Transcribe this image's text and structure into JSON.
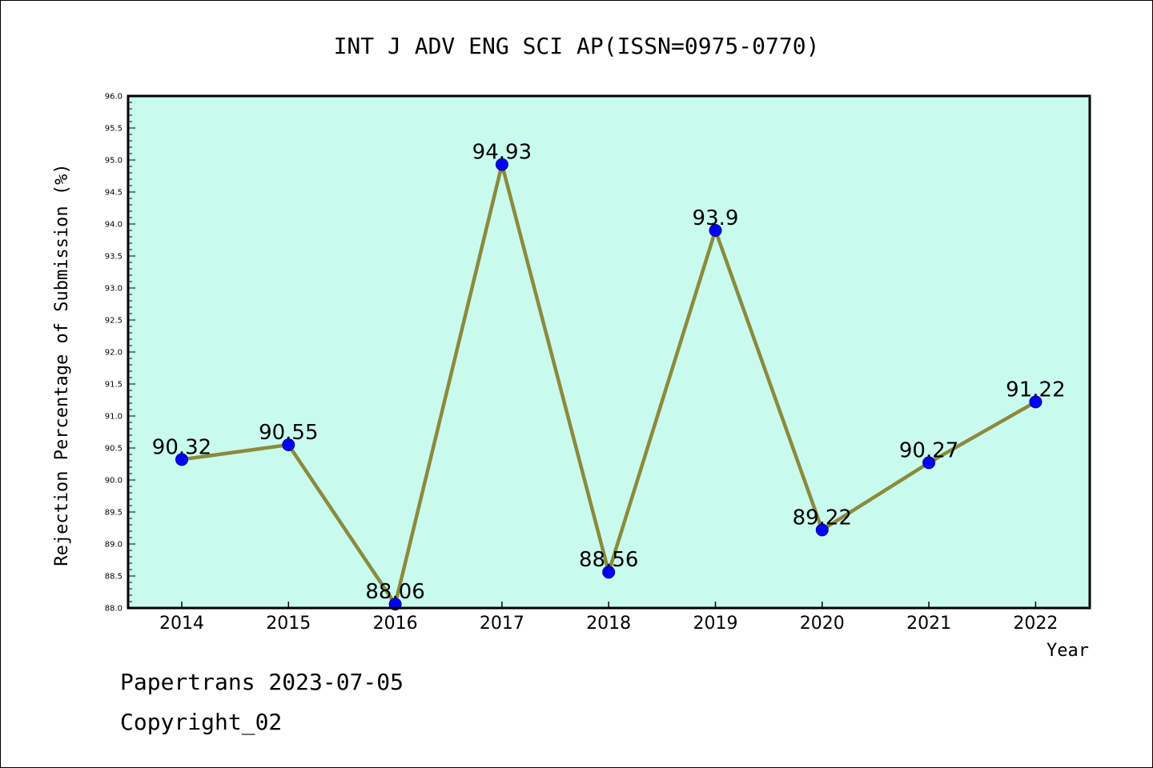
{
  "chart_data": {
    "type": "line",
    "title": "INT J ADV ENG SCI AP(ISSN=0975-0770)",
    "xlabel": "Year",
    "ylabel": "Rejection Percentage of Submission (%)",
    "categories": [
      "2014",
      "2015",
      "2016",
      "2017",
      "2018",
      "2019",
      "2020",
      "2021",
      "2022"
    ],
    "series": [
      {
        "values": [
          90.32,
          90.55,
          88.06,
          94.93,
          88.56,
          93.9,
          89.22,
          90.27,
          91.22
        ]
      }
    ],
    "data_labels": [
      "90.32",
      "90.55",
      "88.06",
      "94.93",
      "88.56",
      "93.9",
      "89.22",
      "90.27",
      "91.22"
    ],
    "ylim": [
      88.0,
      96.0
    ],
    "yticks": [
      "88.0",
      "88.5",
      "89.0",
      "89.5",
      "90.0",
      "90.5",
      "91.0",
      "91.5",
      "92.0",
      "92.5",
      "93.0",
      "93.5",
      "94.0",
      "94.5",
      "95.0",
      "95.5",
      "96.0"
    ],
    "grid": false,
    "colors": {
      "plot_background": "#c8fbee",
      "line": "#8b8a3c",
      "marker": "#0000ff"
    }
  },
  "footer": {
    "credit": "Papertrans 2023-07-05",
    "copyright": "Copyright_02"
  }
}
